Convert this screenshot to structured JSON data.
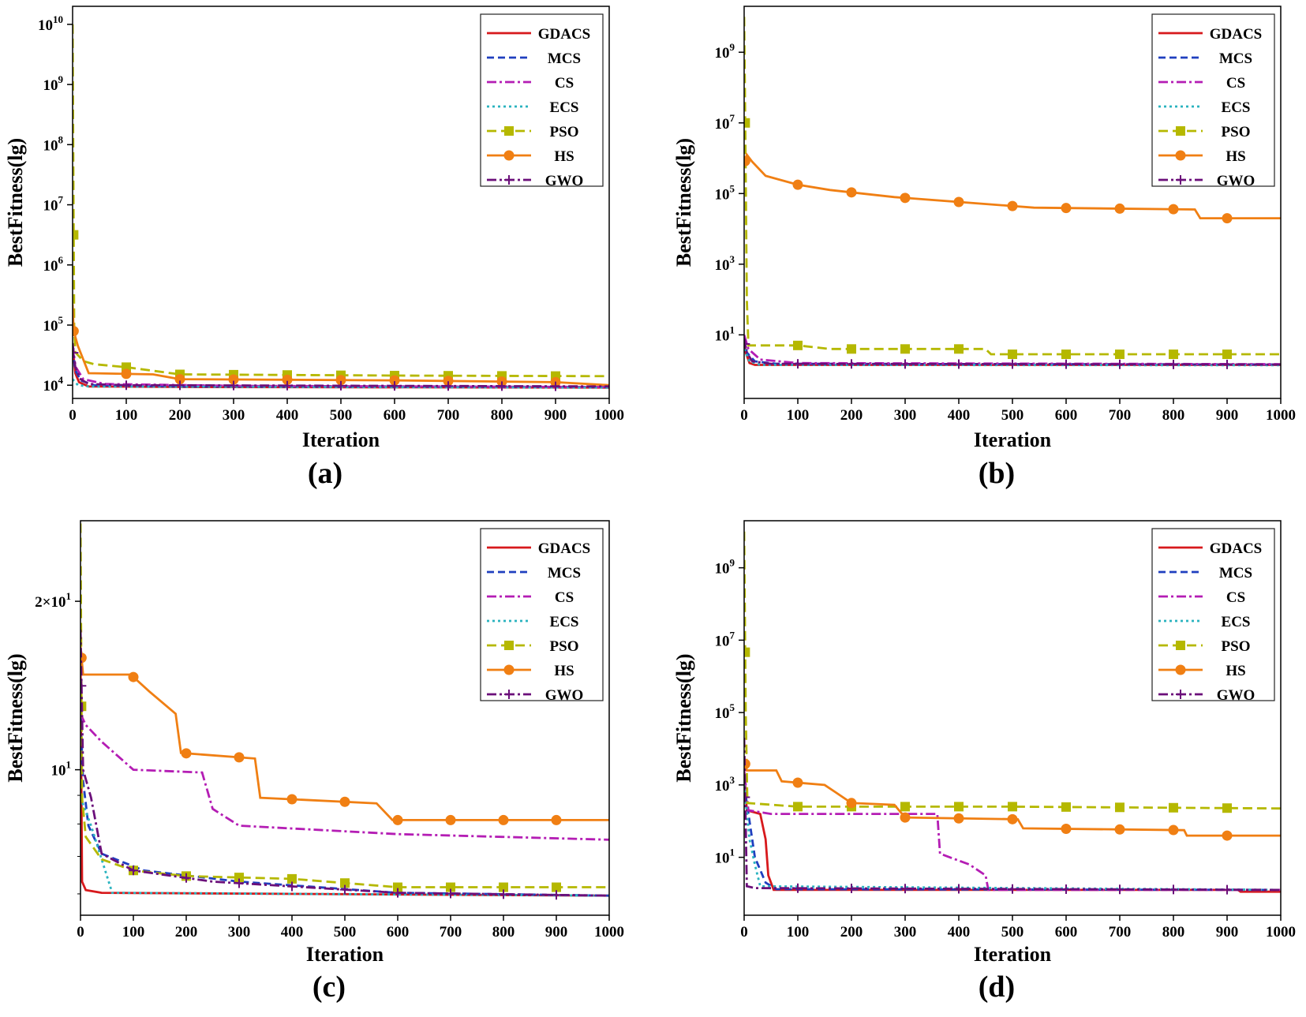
{
  "figure": {
    "series_style": [
      {
        "name": "GDACS",
        "color": "#d7191c",
        "dash": "",
        "marker": "none"
      },
      {
        "name": "MCS",
        "color": "#1f3fbf",
        "dash": "9,5",
        "marker": "none"
      },
      {
        "name": "CS",
        "color": "#b41db4",
        "dash": "12,4,3,4",
        "marker": "none"
      },
      {
        "name": "ECS",
        "color": "#2ab3bf",
        "dash": "3,4",
        "marker": "none"
      },
      {
        "name": "PSO",
        "color": "#b5b800",
        "dash": "12,6",
        "marker": "square"
      },
      {
        "name": "HS",
        "color": "#f07f13",
        "dash": "",
        "marker": "circle"
      },
      {
        "name": "GWO",
        "color": "#6b0f7a",
        "dash": "12,4,3,4",
        "marker": "plus"
      }
    ]
  },
  "chart_data": [
    {
      "panel": "(a)",
      "type": "line",
      "scale": "log",
      "xlabel": "Iteration",
      "ylabel": "BestFitness(lg)",
      "xlim": [
        0,
        1000
      ],
      "ylim_log10": [
        3.78,
        10.3
      ],
      "xticks": [
        0,
        100,
        200,
        300,
        400,
        500,
        600,
        700,
        800,
        900,
        1000
      ],
      "yticks": [
        {
          "label": "10",
          "exp": "4",
          "log": 4
        },
        {
          "label": "10",
          "exp": "5",
          "log": 5
        },
        {
          "label": "10",
          "exp": "6",
          "log": 6
        },
        {
          "label": "10",
          "exp": "7",
          "log": 7
        },
        {
          "label": "10",
          "exp": "8",
          "log": 8
        },
        {
          "label": "10",
          "exp": "9",
          "log": 9
        },
        {
          "label": "10",
          "exp": "10",
          "log": 10
        }
      ],
      "series": [
        {
          "name": "GDACS",
          "points": [
            [
              0,
              4.65
            ],
            [
              5,
              4.2
            ],
            [
              12,
              4.05
            ],
            [
              30,
              3.98
            ],
            [
              200,
              3.97
            ],
            [
              1000,
              3.96
            ]
          ]
        },
        {
          "name": "MCS",
          "points": [
            [
              0,
              4.6
            ],
            [
              5,
              4.25
            ],
            [
              15,
              4.08
            ],
            [
              40,
              4.0
            ],
            [
              200,
              3.98
            ],
            [
              1000,
              3.97
            ]
          ]
        },
        {
          "name": "CS",
          "points": [
            [
              0,
              4.6
            ],
            [
              6,
              4.3
            ],
            [
              20,
              4.1
            ],
            [
              60,
              4.02
            ],
            [
              300,
              3.99
            ],
            [
              1000,
              3.97
            ]
          ]
        },
        {
          "name": "ECS",
          "points": [
            [
              0,
              4.1
            ],
            [
              10,
              4.0
            ],
            [
              30,
              3.98
            ],
            [
              1000,
              3.96
            ]
          ]
        },
        {
          "name": "PSO",
          "points": [
            [
              0,
              10.0
            ],
            [
              2,
              6.5
            ],
            [
              3,
              5.0
            ],
            [
              5,
              4.55
            ],
            [
              20,
              4.4
            ],
            [
              40,
              4.35
            ],
            [
              100,
              4.3
            ],
            [
              200,
              4.18
            ],
            [
              600,
              4.16
            ],
            [
              1000,
              4.15
            ]
          ]
        },
        {
          "name": "HS",
          "points": [
            [
              0,
              5.35
            ],
            [
              2,
              4.9
            ],
            [
              10,
              4.65
            ],
            [
              30,
              4.2
            ],
            [
              150,
              4.18
            ],
            [
              200,
              4.1
            ],
            [
              600,
              4.08
            ],
            [
              900,
              4.05
            ],
            [
              1000,
              4.0
            ]
          ]
        },
        {
          "name": "GWO",
          "points": [
            [
              0,
              4.7
            ],
            [
              5,
              4.3
            ],
            [
              15,
              4.1
            ],
            [
              30,
              4.02
            ],
            [
              100,
              4.0
            ],
            [
              1000,
              3.98
            ]
          ]
        }
      ]
    },
    {
      "panel": "(b)",
      "type": "line",
      "scale": "log",
      "xlabel": "Iteration",
      "ylabel": "BestFitness(lg)",
      "xlim": [
        0,
        1000
      ],
      "ylim_log10": [
        -0.8,
        10.3
      ],
      "xticks": [
        0,
        100,
        200,
        300,
        400,
        500,
        600,
        700,
        800,
        900,
        1000
      ],
      "yticks": [
        {
          "label": "10",
          "exp": "1",
          "log": 1
        },
        {
          "label": "10",
          "exp": "3",
          "log": 3
        },
        {
          "label": "10",
          "exp": "5",
          "log": 5
        },
        {
          "label": "10",
          "exp": "7",
          "log": 7
        },
        {
          "label": "10",
          "exp": "9",
          "log": 9
        }
      ],
      "series": [
        {
          "name": "GDACS",
          "points": [
            [
              0,
              0.9
            ],
            [
              3,
              0.5
            ],
            [
              10,
              0.2
            ],
            [
              20,
              0.15
            ],
            [
              1000,
              0.15
            ]
          ]
        },
        {
          "name": "MCS",
          "points": [
            [
              0,
              0.9
            ],
            [
              5,
              0.5
            ],
            [
              20,
              0.25
            ],
            [
              60,
              0.18
            ],
            [
              1000,
              0.16
            ]
          ]
        },
        {
          "name": "CS",
          "points": [
            [
              0,
              1.0
            ],
            [
              8,
              0.6
            ],
            [
              30,
              0.3
            ],
            [
              100,
              0.2
            ],
            [
              1000,
              0.17
            ]
          ]
        },
        {
          "name": "ECS",
          "points": [
            [
              0,
              0.6
            ],
            [
              10,
              0.25
            ],
            [
              30,
              0.15
            ],
            [
              1000,
              0.14
            ]
          ]
        },
        {
          "name": "PSO",
          "points": [
            [
              0,
              10.0
            ],
            [
              2,
              7.0
            ],
            [
              5,
              2.0
            ],
            [
              8,
              0.7
            ],
            [
              100,
              0.7
            ],
            [
              160,
              0.6
            ],
            [
              450,
              0.6
            ],
            [
              460,
              0.45
            ],
            [
              1000,
              0.45
            ]
          ]
        },
        {
          "name": "HS",
          "points": [
            [
              0,
              5.8
            ],
            [
              5,
              6.1
            ],
            [
              15,
              5.9
            ],
            [
              40,
              5.5
            ],
            [
              100,
              5.25
            ],
            [
              160,
              5.1
            ],
            [
              280,
              4.9
            ],
            [
              540,
              4.6
            ],
            [
              840,
              4.55
            ],
            [
              850,
              4.3
            ],
            [
              1000,
              4.3
            ]
          ]
        },
        {
          "name": "GWO",
          "points": [
            [
              0,
              0.9
            ],
            [
              5,
              0.5
            ],
            [
              15,
              0.25
            ],
            [
              50,
              0.18
            ],
            [
              1000,
              0.16
            ]
          ]
        }
      ]
    },
    {
      "panel": "(c)",
      "type": "line",
      "scale": "log",
      "xlabel": "Iteration",
      "ylabel": "BestFitness(lg)",
      "xlim": [
        0,
        1000
      ],
      "ylim_log10": [
        0.74,
        1.445
      ],
      "xticks": [
        0,
        100,
        200,
        300,
        400,
        500,
        600,
        700,
        800,
        900,
        1000
      ],
      "yticks": [
        {
          "label": "10",
          "exp": "1",
          "log": 1
        },
        {
          "label": "2×10",
          "exp": "1",
          "log": 1.30103
        }
      ],
      "series": [
        {
          "name": "GDACS",
          "points": [
            [
              0,
              1.2
            ],
            [
              3,
              0.8
            ],
            [
              10,
              0.785
            ],
            [
              40,
              0.78
            ],
            [
              1000,
              0.775
            ]
          ]
        },
        {
          "name": "MCS",
          "points": [
            [
              0,
              1.1
            ],
            [
              5,
              0.98
            ],
            [
              15,
              0.9
            ],
            [
              40,
              0.85
            ],
            [
              120,
              0.82
            ],
            [
              300,
              0.8
            ],
            [
              600,
              0.78
            ],
            [
              1000,
              0.775
            ]
          ]
        },
        {
          "name": "CS",
          "points": [
            [
              0,
              1.1
            ],
            [
              10,
              1.08
            ],
            [
              40,
              1.05
            ],
            [
              100,
              1.0
            ],
            [
              230,
              0.995
            ],
            [
              250,
              0.93
            ],
            [
              300,
              0.9
            ],
            [
              600,
              0.885
            ],
            [
              1000,
              0.875
            ]
          ]
        },
        {
          "name": "ECS",
          "points": [
            [
              0,
              0.95
            ],
            [
              20,
              0.9
            ],
            [
              60,
              0.78
            ],
            [
              1000,
              0.775
            ]
          ]
        },
        {
          "name": "PSO",
          "points": [
            [
              0,
              1.44
            ],
            [
              3,
              0.95
            ],
            [
              10,
              0.88
            ],
            [
              40,
              0.84
            ],
            [
              100,
              0.82
            ],
            [
              200,
              0.81
            ],
            [
              400,
              0.805
            ],
            [
              600,
              0.79
            ],
            [
              1000,
              0.79
            ]
          ]
        },
        {
          "name": "HS",
          "points": [
            [
              0,
              1.22
            ],
            [
              5,
              1.17
            ],
            [
              95,
              1.17
            ],
            [
              130,
              1.14
            ],
            [
              180,
              1.1
            ],
            [
              190,
              1.03
            ],
            [
              330,
              1.02
            ],
            [
              340,
              0.95
            ],
            [
              560,
              0.94
            ],
            [
              590,
              0.91
            ],
            [
              1000,
              0.91
            ]
          ]
        },
        {
          "name": "GWO",
          "points": [
            [
              0,
              1.25
            ],
            [
              5,
              1.0
            ],
            [
              20,
              0.95
            ],
            [
              40,
              0.85
            ],
            [
              100,
              0.82
            ],
            [
              250,
              0.8
            ],
            [
              600,
              0.78
            ],
            [
              1000,
              0.775
            ]
          ]
        }
      ]
    },
    {
      "panel": "(d)",
      "type": "line",
      "scale": "log",
      "xlabel": "Iteration",
      "ylabel": "BestFitness(lg)",
      "xlim": [
        0,
        1000
      ],
      "ylim_log10": [
        -0.6,
        10.3
      ],
      "xticks": [
        0,
        100,
        200,
        300,
        400,
        500,
        600,
        700,
        800,
        900,
        1000
      ],
      "yticks": [
        {
          "label": "10",
          "exp": "1",
          "log": 1
        },
        {
          "label": "10",
          "exp": "3",
          "log": 3
        },
        {
          "label": "10",
          "exp": "5",
          "log": 5
        },
        {
          "label": "10",
          "exp": "7",
          "log": 7
        },
        {
          "label": "10",
          "exp": "9",
          "log": 9
        }
      ],
      "series": [
        {
          "name": "GDACS",
          "points": [
            [
              0,
              3.4
            ],
            [
              5,
              2.3
            ],
            [
              30,
              2.2
            ],
            [
              40,
              1.5
            ],
            [
              45,
              0.5
            ],
            [
              55,
              0.1
            ],
            [
              920,
              0.1
            ],
            [
              925,
              0.05
            ],
            [
              1000,
              0.05
            ]
          ]
        },
        {
          "name": "MCS",
          "points": [
            [
              0,
              3.0
            ],
            [
              10,
              2.0
            ],
            [
              20,
              1.0
            ],
            [
              40,
              0.3
            ],
            [
              60,
              0.12
            ],
            [
              1000,
              0.1
            ]
          ]
        },
        {
          "name": "CS",
          "points": [
            [
              0,
              3.4
            ],
            [
              8,
              2.3
            ],
            [
              50,
              2.2
            ],
            [
              360,
              2.2
            ],
            [
              365,
              1.1
            ],
            [
              420,
              0.8
            ],
            [
              450,
              0.5
            ],
            [
              455,
              0.1
            ],
            [
              1000,
              0.1
            ]
          ]
        },
        {
          "name": "ECS",
          "points": [
            [
              0,
              3.0
            ],
            [
              10,
              1.5
            ],
            [
              20,
              0.8
            ],
            [
              30,
              0.2
            ],
            [
              1000,
              0.1
            ]
          ]
        },
        {
          "name": "PSO",
          "points": [
            [
              0,
              10.0
            ],
            [
              3,
              5.0
            ],
            [
              6,
              2.5
            ],
            [
              100,
              2.4
            ],
            [
              500,
              2.4
            ],
            [
              1000,
              2.35
            ]
          ]
        },
        {
          "name": "HS",
          "points": [
            [
              0,
              3.7
            ],
            [
              5,
              3.4
            ],
            [
              60,
              3.4
            ],
            [
              70,
              3.1
            ],
            [
              150,
              3.0
            ],
            [
              170,
              2.8
            ],
            [
              200,
              2.5
            ],
            [
              280,
              2.45
            ],
            [
              300,
              2.1
            ],
            [
              510,
              2.05
            ],
            [
              520,
              1.8
            ],
            [
              820,
              1.75
            ],
            [
              825,
              1.6
            ],
            [
              1000,
              1.6
            ]
          ]
        },
        {
          "name": "GWO",
          "points": [
            [
              0,
              4.3
            ],
            [
              5,
              0.2
            ],
            [
              20,
              0.15
            ],
            [
              1000,
              0.1
            ]
          ]
        }
      ]
    }
  ]
}
